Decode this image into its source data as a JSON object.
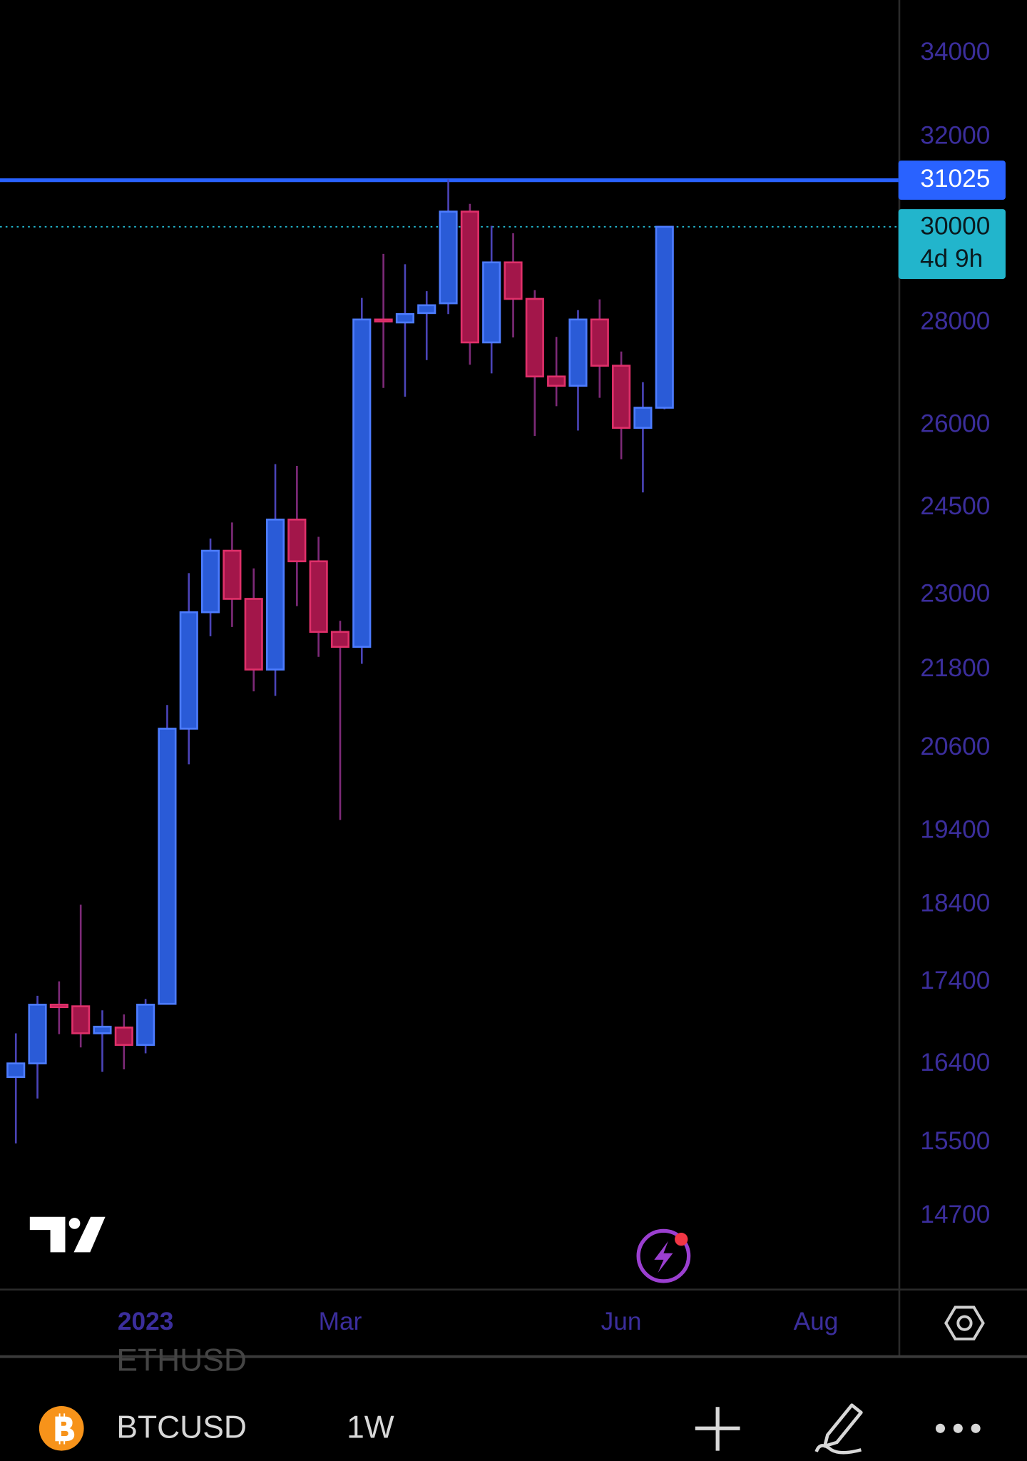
{
  "chart_data": {
    "type": "candlestick",
    "symbol": "BTCUSD",
    "interval": "1W",
    "ghost_symbol": "ETHUSD",
    "x": [
      0,
      1,
      2,
      3,
      4,
      5,
      6,
      7,
      8,
      9,
      10,
      11,
      12,
      13,
      14,
      15,
      16,
      17,
      18,
      19,
      20,
      21,
      22,
      23,
      24,
      25,
      26,
      27,
      28,
      29,
      30
    ],
    "open": [
      16250,
      16410,
      17120,
      17100,
      16770,
      16840,
      16630,
      17130,
      20890,
      22720,
      23750,
      22940,
      21800,
      24290,
      23570,
      22400,
      22160,
      28060,
      28000,
      28190,
      28390,
      30330,
      27600,
      29240,
      28480,
      26930,
      26750,
      28060,
      27140,
      25950,
      26330
    ],
    "high": [
      16770,
      17230,
      17410,
      18400,
      17050,
      17000,
      17190,
      21250,
      23370,
      23960,
      24240,
      23450,
      25280,
      25250,
      23990,
      22580,
      28500,
      29420,
      29200,
      28640,
      31040,
      30500,
      30020,
      29860,
      28660,
      27710,
      28250,
      28470,
      27420,
      26820,
      30000
    ],
    "low": [
      15490,
      16000,
      16760,
      16600,
      16310,
      16340,
      16530,
      17130,
      20360,
      22330,
      22480,
      21460,
      21390,
      22820,
      22000,
      19560,
      21890,
      26710,
      26540,
      27250,
      28170,
      27160,
      26990,
      27700,
      25800,
      26360,
      25900,
      26520,
      25370,
      24770,
      26300
    ],
    "close": [
      16410,
      17120,
      17090,
      16770,
      16850,
      16630,
      17120,
      20890,
      22720,
      23750,
      22940,
      21800,
      24290,
      23570,
      22400,
      22160,
      28060,
      28020,
      28170,
      28350,
      30330,
      27600,
      29240,
      28480,
      26930,
      26750,
      28060,
      27140,
      25950,
      26330,
      30000
    ],
    "up_color": "#2a5bd7",
    "up_border": "#4d7cff",
    "up_wick": "#4b44b8",
    "down_color": "#a3164a",
    "down_border": "#e0306a",
    "down_wick": "#7d2a78",
    "log_scale": true,
    "ylim": [
      13950,
      35330
    ],
    "yticks": [
      34000,
      32000,
      28000,
      26000,
      24500,
      23000,
      21800,
      20600,
      19400,
      18400,
      17400,
      16400,
      15500,
      14700
    ],
    "xlim": [
      -0.733,
      40.86
    ],
    "xticks": [
      {
        "value": 6,
        "label": "2023"
      },
      {
        "value": 15,
        "label": "Mar"
      },
      {
        "value": 28,
        "label": "Jun"
      },
      {
        "value": 37,
        "label": "Aug"
      }
    ],
    "hline": {
      "value": 31025,
      "color": "#2962ff"
    },
    "last_price": {
      "value": 30000,
      "countdown": "4d 9h",
      "color": "#22b5cc"
    }
  }
}
